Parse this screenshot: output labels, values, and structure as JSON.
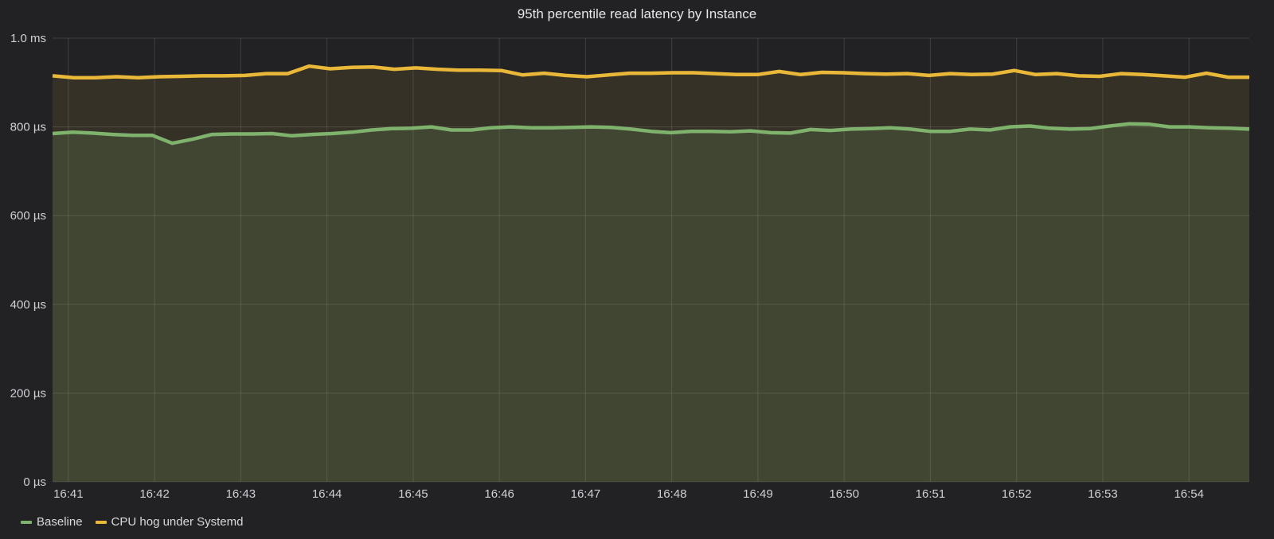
{
  "panel": {
    "title": "95th percentile read latency by Instance"
  },
  "chart_data": {
    "type": "area",
    "title": "95th percentile read latency by Instance",
    "xlabel": "",
    "ylabel": "",
    "ylim": [
      0,
      1000
    ],
    "y_unit": "µs",
    "y_ticks": [
      {
        "value": 0,
        "label": "0 µs"
      },
      {
        "value": 200,
        "label": "200 µs"
      },
      {
        "value": 400,
        "label": "400 µs"
      },
      {
        "value": 600,
        "label": "600 µs"
      },
      {
        "value": 800,
        "label": "800 µs"
      },
      {
        "value": 1000,
        "label": "1.0 ms"
      }
    ],
    "x_ticks": [
      "16:41",
      "16:42",
      "16:43",
      "16:44",
      "16:45",
      "16:46",
      "16:47",
      "16:48",
      "16:49",
      "16:50",
      "16:51",
      "16:52",
      "16:53",
      "16:54"
    ],
    "x_start": "16:40:49",
    "x_end": "16:54:42",
    "x_step_seconds": 15,
    "grid": true,
    "legend_position": "bottom-left",
    "series": [
      {
        "name": "Baseline",
        "color": "#7eb26d",
        "fill": "rgba(126,178,109,0.17)",
        "values": [
          785,
          788,
          786,
          783,
          781,
          781,
          763,
          772,
          783,
          784,
          784,
          785,
          780,
          783,
          785,
          788,
          793,
          796,
          797,
          800,
          793,
          793,
          798,
          800,
          798,
          798,
          799,
          800,
          799,
          795,
          790,
          787,
          790,
          790,
          789,
          791,
          787,
          786,
          794,
          792,
          795,
          796,
          798,
          795,
          790,
          790,
          795,
          793,
          800,
          802,
          797,
          795,
          796,
          802,
          807,
          806,
          800,
          800,
          798,
          797,
          795
        ]
      },
      {
        "name": "CPU hog under Systemd",
        "color": "#eab839",
        "fill": "rgba(234,184,57,0.10)",
        "values": [
          915,
          911,
          911,
          913,
          911,
          913,
          914,
          915,
          915,
          916,
          920,
          920,
          937,
          931,
          934,
          935,
          930,
          933,
          930,
          928,
          928,
          927,
          917,
          921,
          916,
          913,
          917,
          921,
          921,
          922,
          922,
          920,
          918,
          918,
          925,
          918,
          923,
          922,
          920,
          919,
          920,
          916,
          920,
          918,
          919,
          927,
          918,
          920,
          915,
          914,
          920,
          918,
          915,
          912,
          921,
          912,
          912
        ]
      }
    ]
  },
  "legend": {
    "items": [
      {
        "label": "Baseline",
        "color": "#7eb26d"
      },
      {
        "label": "CPU hog under Systemd",
        "color": "#eab839"
      }
    ]
  }
}
